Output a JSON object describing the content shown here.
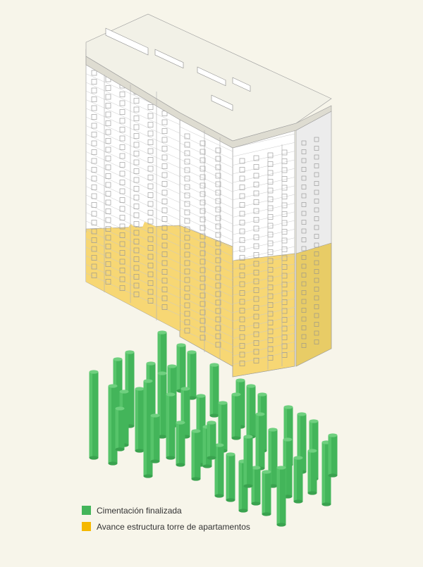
{
  "colors": {
    "background": "#f7f5ea",
    "foundation": "#43b55a",
    "structure": "#f7d774",
    "facade": "#ffffff",
    "roof": "#f2f1e7",
    "line": "#9a9a9a"
  },
  "legend": {
    "items": [
      {
        "label": "Cimentación finalizada",
        "color": "#43b55a"
      },
      {
        "label": "Avance estructura torre de apartamentos",
        "color": "#f5b800"
      }
    ]
  }
}
